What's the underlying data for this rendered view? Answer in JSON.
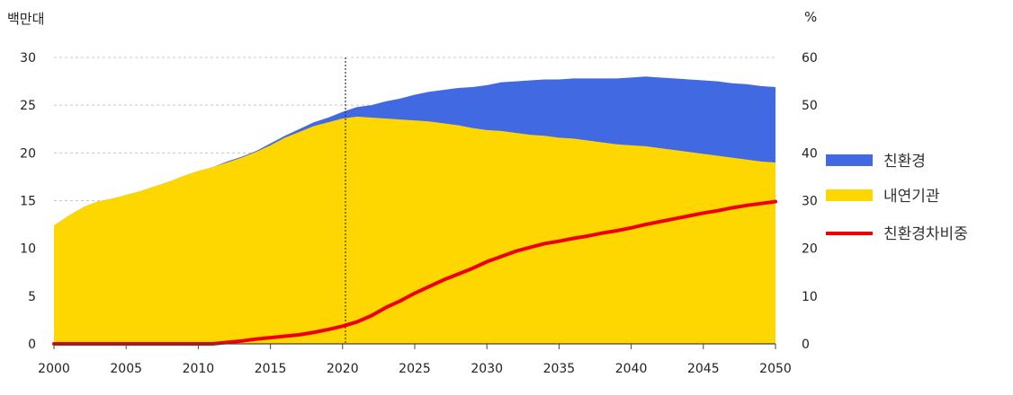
{
  "chart_data": {
    "type": "area",
    "y_unit_left": "백만대",
    "y_unit_right": "%",
    "x": [
      2000,
      2001,
      2002,
      2003,
      2004,
      2005,
      2006,
      2007,
      2008,
      2009,
      2010,
      2011,
      2012,
      2013,
      2014,
      2015,
      2016,
      2017,
      2018,
      2019,
      2020,
      2021,
      2022,
      2023,
      2024,
      2025,
      2026,
      2027,
      2028,
      2029,
      2030,
      2031,
      2032,
      2033,
      2034,
      2035,
      2036,
      2037,
      2038,
      2039,
      2040,
      2041,
      2042,
      2043,
      2044,
      2045,
      2046,
      2047,
      2048,
      2049,
      2050
    ],
    "x_ticks": [
      2000,
      2005,
      2010,
      2015,
      2020,
      2025,
      2030,
      2035,
      2040,
      2045,
      2050
    ],
    "x_tick_labels": [
      "2000",
      "2005",
      "2010",
      "2015",
      "2020",
      "2025",
      "2030",
      "2035",
      "2040",
      "2045",
      "2050"
    ],
    "ylim_left": [
      0,
      30
    ],
    "yticks_left": [
      0,
      5,
      10,
      15,
      20,
      25,
      30
    ],
    "ylim_right": [
      0,
      60
    ],
    "yticks_right": [
      0,
      10,
      20,
      30,
      40,
      50,
      60
    ],
    "series": [
      {
        "name": "친환경",
        "kind": "area",
        "axis": "left",
        "color": "#4169e1",
        "values": [
          0,
          0,
          0,
          0,
          0,
          0,
          0,
          0,
          0,
          0,
          0,
          0,
          0.1,
          0.1,
          0.1,
          0.2,
          0.2,
          0.3,
          0.4,
          0.5,
          0.7,
          1.0,
          1.3,
          1.8,
          2.2,
          2.7,
          3.1,
          3.5,
          3.9,
          4.3,
          4.7,
          5.1,
          5.4,
          5.7,
          5.9,
          6.1,
          6.3,
          6.5,
          6.7,
          6.9,
          7.1,
          7.3,
          7.4,
          7.5,
          7.6,
          7.7,
          7.8,
          7.8,
          7.9,
          7.9,
          7.9
        ]
      },
      {
        "name": "내연기관",
        "kind": "area",
        "axis": "left",
        "color": "#ffd700",
        "values": [
          12.4,
          13.4,
          14.3,
          14.9,
          15.2,
          15.6,
          16.0,
          16.5,
          17.0,
          17.6,
          18.1,
          18.5,
          19.0,
          19.5,
          20.1,
          20.8,
          21.6,
          22.2,
          22.8,
          23.2,
          23.6,
          23.8,
          23.7,
          23.6,
          23.5,
          23.4,
          23.3,
          23.1,
          22.9,
          22.6,
          22.4,
          22.3,
          22.1,
          21.9,
          21.8,
          21.6,
          21.5,
          21.3,
          21.1,
          20.9,
          20.8,
          20.7,
          20.5,
          20.3,
          20.1,
          19.9,
          19.7,
          19.5,
          19.3,
          19.1,
          19.0
        ]
      },
      {
        "name": "친환경차비중",
        "kind": "line",
        "axis": "right",
        "color": "#ee0000",
        "values": [
          0,
          0,
          0,
          0,
          0,
          0,
          0,
          0,
          0,
          0,
          0,
          0,
          0.3,
          0.6,
          1.0,
          1.3,
          1.6,
          1.9,
          2.4,
          3.0,
          3.7,
          4.6,
          5.9,
          7.6,
          9.0,
          10.6,
          12.0,
          13.4,
          14.6,
          15.8,
          17.2,
          18.3,
          19.4,
          20.2,
          21.0,
          21.5,
          22.1,
          22.6,
          23.2,
          23.7,
          24.3,
          25.0,
          25.6,
          26.2,
          26.8,
          27.4,
          27.9,
          28.5,
          29.0,
          29.4,
          29.8
        ]
      }
    ],
    "reference_line": {
      "x": 2020.2,
      "style": "dotted"
    },
    "legend": {
      "placement": "right",
      "items": [
        {
          "label": "친환경",
          "color": "#4169e1",
          "marker": "box"
        },
        {
          "label": "내연기관",
          "color": "#ffd700",
          "marker": "box"
        },
        {
          "label": "친환경차비중",
          "color": "#ee0000",
          "marker": "line"
        }
      ]
    }
  }
}
